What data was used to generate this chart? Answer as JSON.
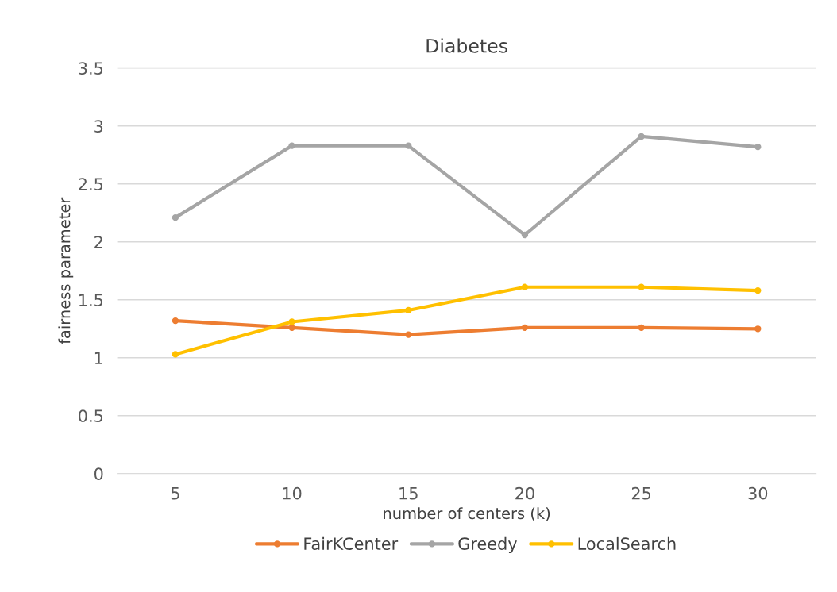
{
  "chart_data": {
    "type": "line",
    "title": "Diabetes",
    "xlabel": "number of centers (k)",
    "ylabel": "fairness parameter",
    "categories": [
      "5",
      "10",
      "15",
      "20",
      "25",
      "30"
    ],
    "series": [
      {
        "name": "FairKCenter",
        "color": "#ed7d31",
        "values": [
          1.32,
          1.26,
          1.2,
          1.26,
          1.26,
          1.25
        ]
      },
      {
        "name": "Greedy",
        "color": "#a5a5a5",
        "values": [
          2.21,
          2.83,
          2.83,
          2.06,
          2.91,
          2.82
        ]
      },
      {
        "name": "LocalSearch",
        "color": "#ffc000",
        "values": [
          1.03,
          1.31,
          1.41,
          1.61,
          1.61,
          1.58
        ]
      }
    ],
    "ylim": [
      0,
      3.5
    ],
    "yticks": [
      0,
      {
        "value": 0.5,
        "label": "0.5"
      },
      1,
      {
        "value": 1.5,
        "label": "1.5"
      },
      2,
      {
        "value": 2.5,
        "label": "2.5"
      },
      3,
      {
        "value": 3.5,
        "label": "3.5"
      }
    ],
    "grid": "y",
    "legend": "bottom",
    "marker": "circle",
    "line_style": "solid"
  }
}
